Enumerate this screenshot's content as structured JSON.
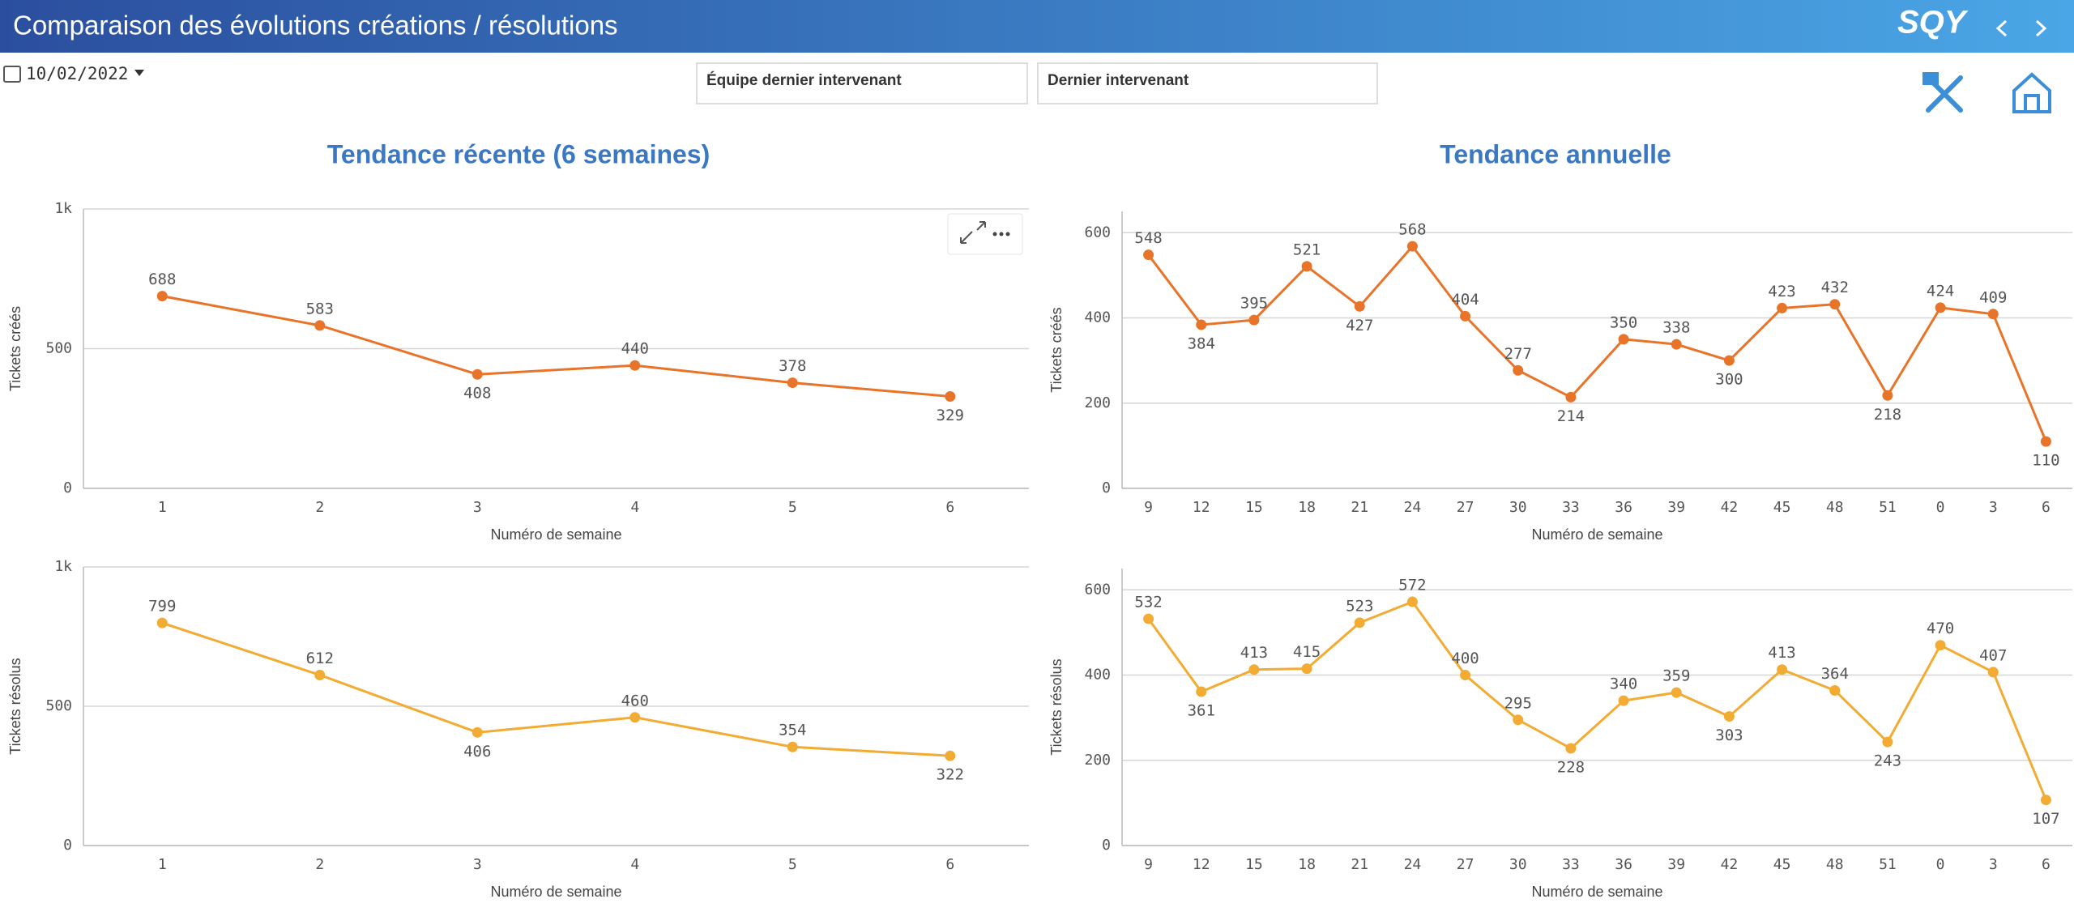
{
  "header": {
    "title": "Comparaison des évolutions créations / résolutions",
    "logo": "SQY"
  },
  "date_filter": "10/02/2022",
  "filters": [
    "Équipe dernier intervenant",
    "Dernier intervenant"
  ],
  "sections": [
    "Tendance récente (6 semaines)",
    "Tendance annuelle"
  ],
  "chart_data": [
    {
      "type": "line",
      "x_label": "Numéro de semaine",
      "y_label": "Tickets créés",
      "color": "#e8742a",
      "categories": [
        "1",
        "2",
        "3",
        "4",
        "5",
        "6"
      ],
      "values": [
        688,
        583,
        408,
        440,
        378,
        329
      ],
      "ylim": [
        0,
        1000
      ],
      "yticks": [
        0,
        500,
        {
          "value": 1000,
          "label": "1k"
        }
      ],
      "grid": true
    },
    {
      "type": "line",
      "x_label": "Numéro de semaine",
      "y_label": "Tickets résolus",
      "color": "#f2ab33",
      "categories": [
        "1",
        "2",
        "3",
        "4",
        "5",
        "6"
      ],
      "values": [
        799,
        612,
        406,
        460,
        354,
        322
      ],
      "ylim": [
        0,
        1000
      ],
      "yticks": [
        0,
        500,
        {
          "value": 1000,
          "label": "1k"
        }
      ],
      "grid": true
    },
    {
      "type": "line",
      "x_label": "Numéro de semaine",
      "y_label": "Tickets créés",
      "color": "#e8742a",
      "categories": [
        "9",
        "12",
        "15",
        "18",
        "21",
        "24",
        "27",
        "30",
        "33",
        "36",
        "39",
        "42",
        "45",
        "48",
        "51",
        "0",
        "3",
        "6"
      ],
      "values": [
        548,
        384,
        395,
        521,
        427,
        568,
        404,
        277,
        214,
        350,
        338,
        300,
        423,
        432,
        218,
        424,
        409,
        110
      ],
      "ylim": [
        0,
        650
      ],
      "yticks": [
        0,
        200,
        400,
        600
      ],
      "grid": true
    },
    {
      "type": "line",
      "x_label": "Numéro de semaine",
      "y_label": "Tickets résolus",
      "color": "#f2ab33",
      "categories": [
        "9",
        "12",
        "15",
        "18",
        "21",
        "24",
        "27",
        "30",
        "33",
        "36",
        "39",
        "42",
        "45",
        "48",
        "51",
        "0",
        "3",
        "6"
      ],
      "values": [
        532,
        361,
        413,
        415,
        523,
        572,
        400,
        295,
        228,
        340,
        359,
        303,
        413,
        364,
        243,
        470,
        407,
        107
      ],
      "ylim": [
        0,
        650
      ],
      "yticks": [
        0,
        200,
        400,
        600
      ],
      "grid": true
    }
  ]
}
